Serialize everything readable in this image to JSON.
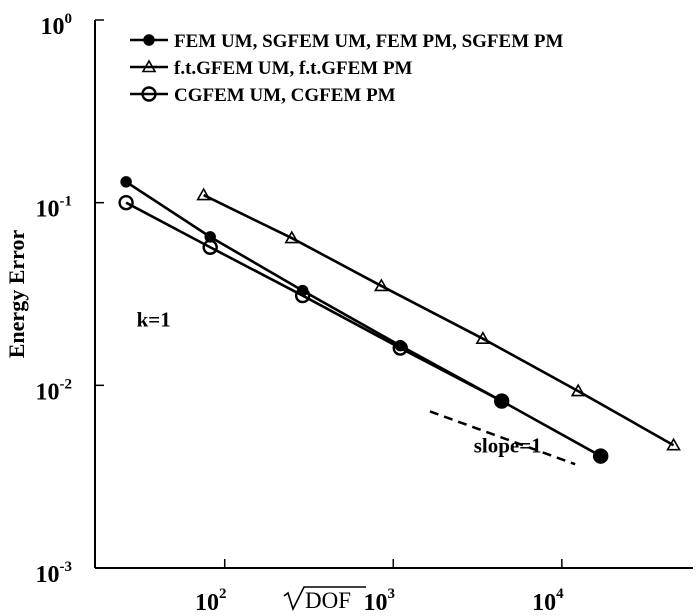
{
  "chart_data": {
    "type": "line",
    "title": "",
    "xlabel": "DOF",
    "ylabel": "Energy Error",
    "x_scale": "log",
    "y_scale": "log",
    "xlim": [
      17,
      60000
    ],
    "ylim": [
      0.001,
      1
    ],
    "x_ticks": [
      {
        "value": 100,
        "base": "10",
        "exp": "2"
      },
      {
        "value": 1000,
        "base": "10",
        "exp": "3"
      },
      {
        "value": 10000,
        "base": "10",
        "exp": "4"
      }
    ],
    "y_ticks": [
      {
        "value": 1,
        "base": "10",
        "exp": "0"
      },
      {
        "value": 0.1,
        "base": "10",
        "exp": "-1"
      },
      {
        "value": 0.01,
        "base": "10",
        "exp": "-2"
      },
      {
        "value": 0.001,
        "base": "10",
        "exp": "-3"
      }
    ],
    "grid": false,
    "legend_position": "top-left",
    "series": [
      {
        "name": "FEM UM, SGFEM UM, FEM PM, SGFEM PM",
        "marker": "filled-circle",
        "color": "#000000",
        "x": [
          26,
          82,
          290,
          1100,
          4400,
          17000
        ],
        "y": [
          0.13,
          0.065,
          0.033,
          0.0165,
          0.0082,
          0.0041
        ]
      },
      {
        "name": "f.t.GFEM UM, f.t.GFEM PM",
        "marker": "open-triangle",
        "color": "#000000",
        "x": [
          75,
          250,
          850,
          3400,
          12500,
          46000
        ],
        "y": [
          0.11,
          0.064,
          0.035,
          0.018,
          0.0093,
          0.0047
        ]
      },
      {
        "name": "CGFEM UM, CGFEM PM",
        "marker": "open-circle",
        "color": "#000000",
        "x": [
          26,
          82,
          290,
          1100,
          4400
        ],
        "y": [
          0.1,
          0.057,
          0.031,
          0.016,
          0.0082
        ]
      }
    ],
    "reference_line": {
      "style": "dashed",
      "x": [
        1650,
        12000
      ],
      "y": [
        0.0072,
        0.0037
      ]
    },
    "annotations": [
      {
        "text": "k=1",
        "x": 30,
        "y": 0.021
      },
      {
        "text": "slope=1",
        "x": 3000,
        "y": 0.0043
      }
    ]
  }
}
